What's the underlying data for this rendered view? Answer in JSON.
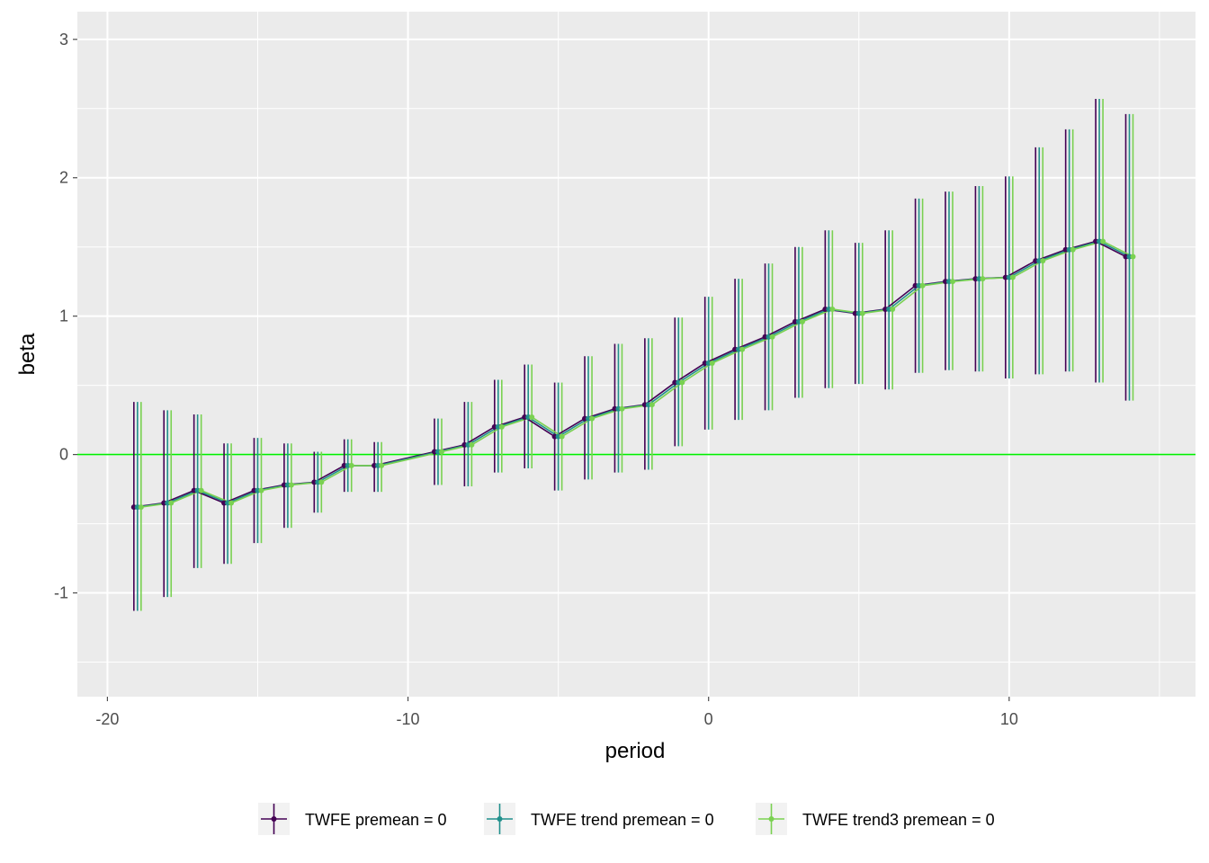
{
  "chart_data": {
    "type": "line",
    "title": "",
    "xlabel": "period",
    "ylabel": "beta",
    "xlim": [
      -21,
      16.2
    ],
    "ylim": [
      -1.75,
      3.2
    ],
    "x_ticks": [
      -20,
      -10,
      0,
      10
    ],
    "x_tick_labels": [
      "-20",
      "-10",
      "0",
      "10"
    ],
    "y_ticks": [
      -1,
      0,
      1,
      2,
      3
    ],
    "y_tick_labels": [
      "-1",
      "0",
      "1",
      "2",
      "3"
    ],
    "grid": true,
    "reference_line": {
      "y": 0,
      "color": "#00ee00"
    },
    "legend_position": "bottom",
    "x": [
      -19,
      -18,
      -17,
      -16,
      -15,
      -14,
      -13,
      -12,
      -11,
      -9,
      -8,
      -7,
      -6,
      -5,
      -4,
      -3,
      -2,
      -1,
      0,
      1,
      2,
      3,
      4,
      5,
      6,
      7,
      8,
      9,
      10,
      11,
      12,
      13,
      14
    ],
    "series": [
      {
        "name": "TWFE premean = 0",
        "color": "#440154",
        "values": [
          -0.38,
          -0.35,
          -0.26,
          -0.35,
          -0.26,
          -0.22,
          -0.2,
          -0.08,
          -0.08,
          0.02,
          0.07,
          0.2,
          0.27,
          0.13,
          0.26,
          0.33,
          0.36,
          0.52,
          0.66,
          0.76,
          0.85,
          0.96,
          1.05,
          1.02,
          1.05,
          1.22,
          1.25,
          1.27,
          1.28,
          1.4,
          1.48,
          1.54,
          1.43
        ],
        "lower": [
          -1.13,
          -1.03,
          -0.82,
          -0.79,
          -0.64,
          -0.53,
          -0.42,
          -0.27,
          -0.27,
          -0.22,
          -0.23,
          -0.13,
          -0.1,
          -0.26,
          -0.18,
          -0.13,
          -0.11,
          0.06,
          0.18,
          0.25,
          0.32,
          0.41,
          0.48,
          0.51,
          0.47,
          0.59,
          0.61,
          0.6,
          0.55,
          0.58,
          0.6,
          0.52,
          0.39
        ],
        "upper": [
          0.38,
          0.32,
          0.29,
          0.08,
          0.12,
          0.08,
          0.02,
          0.11,
          0.09,
          0.26,
          0.38,
          0.54,
          0.65,
          0.52,
          0.71,
          0.8,
          0.84,
          0.99,
          1.14,
          1.27,
          1.38,
          1.5,
          1.62,
          1.53,
          1.62,
          1.85,
          1.9,
          1.94,
          2.01,
          2.22,
          2.35,
          2.57,
          2.46
        ]
      },
      {
        "name": "TWFE trend premean = 0",
        "color": "#21908c",
        "values": [
          -0.38,
          -0.35,
          -0.26,
          -0.35,
          -0.26,
          -0.22,
          -0.2,
          -0.08,
          -0.08,
          0.02,
          0.07,
          0.2,
          0.27,
          0.13,
          0.26,
          0.33,
          0.36,
          0.52,
          0.66,
          0.76,
          0.85,
          0.96,
          1.05,
          1.02,
          1.05,
          1.22,
          1.25,
          1.27,
          1.28,
          1.4,
          1.48,
          1.54,
          1.43
        ],
        "lower": [
          -1.13,
          -1.03,
          -0.82,
          -0.79,
          -0.64,
          -0.53,
          -0.42,
          -0.27,
          -0.27,
          -0.22,
          -0.23,
          -0.13,
          -0.1,
          -0.26,
          -0.18,
          -0.13,
          -0.11,
          0.06,
          0.18,
          0.25,
          0.32,
          0.41,
          0.48,
          0.51,
          0.47,
          0.59,
          0.61,
          0.6,
          0.55,
          0.58,
          0.6,
          0.52,
          0.39
        ],
        "upper": [
          0.38,
          0.32,
          0.29,
          0.08,
          0.12,
          0.08,
          0.02,
          0.11,
          0.09,
          0.26,
          0.38,
          0.54,
          0.65,
          0.52,
          0.71,
          0.8,
          0.84,
          0.99,
          1.14,
          1.27,
          1.38,
          1.5,
          1.62,
          1.53,
          1.62,
          1.85,
          1.9,
          1.94,
          2.01,
          2.22,
          2.35,
          2.57,
          2.46
        ]
      },
      {
        "name": "TWFE trend3 premean = 0",
        "color": "#7ad151",
        "values": [
          -0.38,
          -0.35,
          -0.26,
          -0.35,
          -0.26,
          -0.22,
          -0.2,
          -0.08,
          -0.08,
          0.02,
          0.07,
          0.2,
          0.27,
          0.13,
          0.26,
          0.33,
          0.36,
          0.52,
          0.66,
          0.76,
          0.85,
          0.96,
          1.05,
          1.02,
          1.05,
          1.22,
          1.25,
          1.27,
          1.28,
          1.4,
          1.48,
          1.54,
          1.43
        ],
        "lower": [
          -1.13,
          -1.03,
          -0.82,
          -0.79,
          -0.64,
          -0.53,
          -0.42,
          -0.27,
          -0.27,
          -0.22,
          -0.23,
          -0.13,
          -0.1,
          -0.26,
          -0.18,
          -0.13,
          -0.11,
          0.06,
          0.18,
          0.25,
          0.32,
          0.41,
          0.48,
          0.51,
          0.47,
          0.59,
          0.61,
          0.6,
          0.55,
          0.58,
          0.6,
          0.52,
          0.39
        ],
        "upper": [
          0.38,
          0.32,
          0.29,
          0.08,
          0.12,
          0.08,
          0.02,
          0.11,
          0.09,
          0.26,
          0.38,
          0.54,
          0.65,
          0.52,
          0.71,
          0.8,
          0.84,
          0.99,
          1.14,
          1.27,
          1.38,
          1.5,
          1.62,
          1.53,
          1.62,
          1.85,
          1.9,
          1.94,
          2.01,
          2.22,
          2.35,
          2.57,
          2.46
        ]
      }
    ]
  },
  "colors": {
    "panel_background": "#ebebeb",
    "grid_major": "#ffffff",
    "tick_text": "#4d4d4d",
    "reference_line": "#00ee00"
  }
}
